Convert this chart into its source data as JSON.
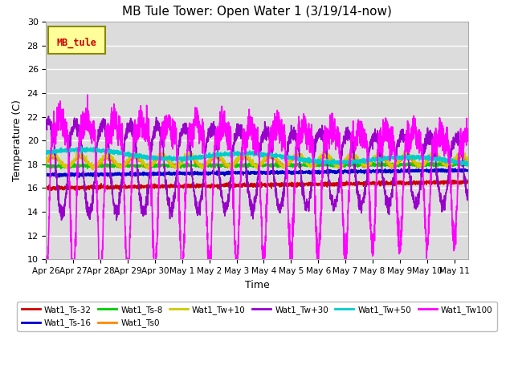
{
  "title": "MB Tule Tower: Open Water 1 (3/19/14-now)",
  "xlabel": "Time",
  "ylabel": "Temperature (C)",
  "ylim": [
    10,
    30
  ],
  "yticks": [
    10,
    12,
    14,
    16,
    18,
    20,
    22,
    24,
    26,
    28,
    30
  ],
  "bg_color": "#dcdcdc",
  "grid_color": "white",
  "series": [
    {
      "label": "Wat1_Ts-32",
      "color": "#cc0000",
      "lw": 1.2
    },
    {
      "label": "Wat1_Ts-16",
      "color": "#0000cc",
      "lw": 1.5
    },
    {
      "label": "Wat1_Ts-8",
      "color": "#00cc00",
      "lw": 1.2
    },
    {
      "label": "Wat1_Ts0",
      "color": "#ff8800",
      "lw": 1.0
    },
    {
      "label": "Wat1_Tw+10",
      "color": "#cccc00",
      "lw": 1.0
    },
    {
      "label": "Wat1_Tw+30",
      "color": "#9900cc",
      "lw": 1.2
    },
    {
      "label": "Wat1_Tw+50",
      "color": "#00cccc",
      "lw": 1.5
    },
    {
      "label": "Wat1_Tw100",
      "color": "#ff00ff",
      "lw": 1.2
    }
  ],
  "x_tick_labels": [
    "Apr 26",
    "Apr 27",
    "Apr 28",
    "Apr 29",
    "Apr 30",
    "May 1",
    "May 2",
    "May 3",
    "May 4",
    "May 5",
    "May 6",
    "May 7",
    "May 8",
    "May 9",
    "May 10",
    "May 11"
  ],
  "x_tick_positions": [
    0,
    1,
    2,
    3,
    4,
    5,
    6,
    7,
    8,
    9,
    10,
    11,
    12,
    13,
    14,
    15
  ],
  "inset_label": "MB_tule",
  "inset_color": "#cc0000",
  "inset_bg": "#ffff99",
  "inset_border": "#888800",
  "figsize": [
    6.4,
    4.8
  ],
  "dpi": 100
}
